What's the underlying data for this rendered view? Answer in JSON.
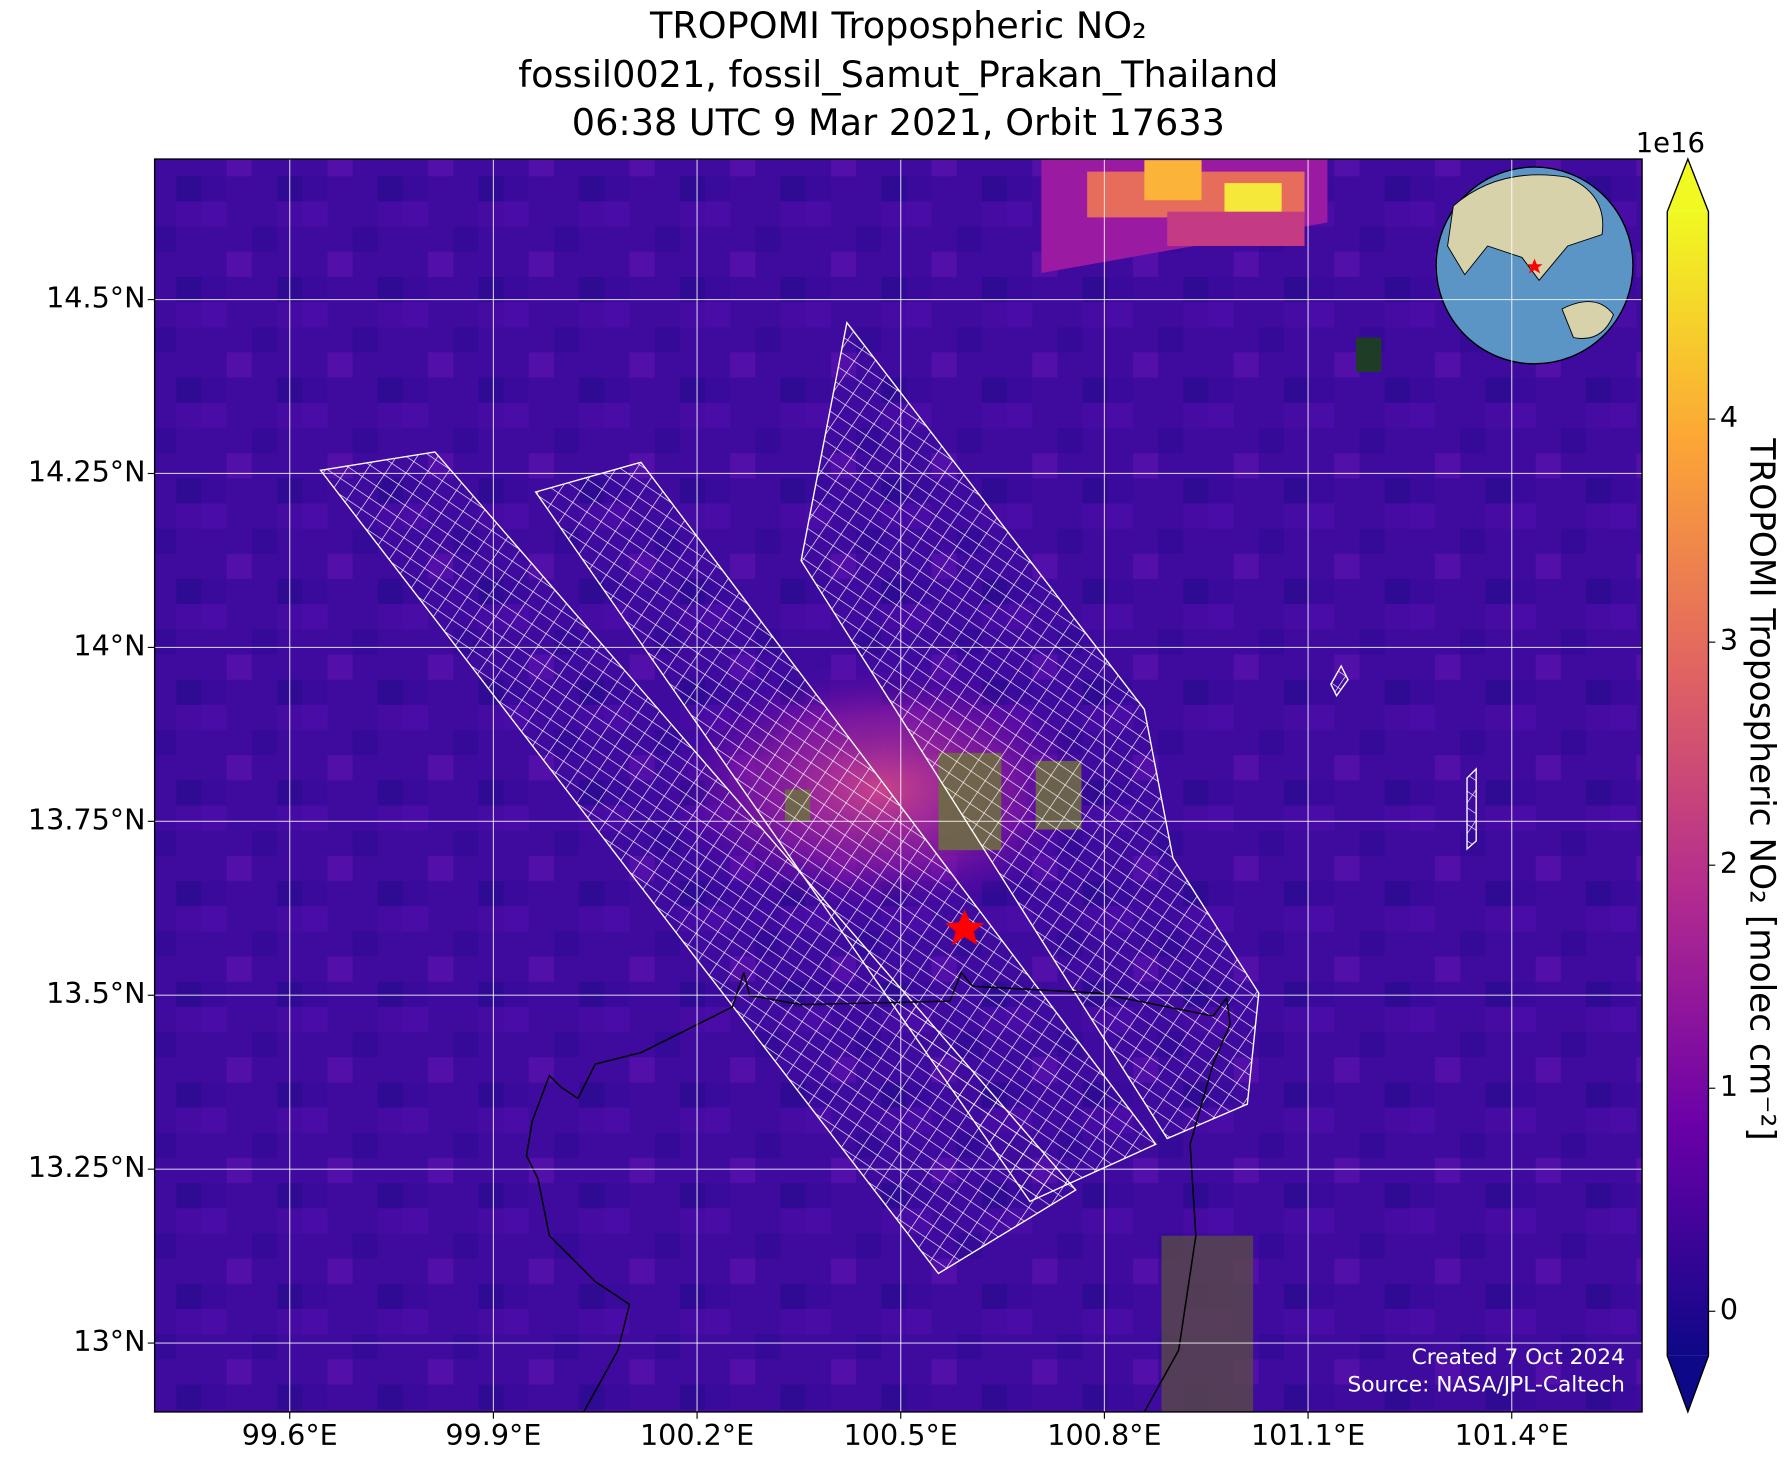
{
  "chart_data": {
    "type": "map",
    "title": [
      "TROPOMI Tropospheric NO₂",
      "fossil0021, fossil_Samut_Prakan_Thailand",
      "06:38 UTC 9 Mar 2021, Orbit 17633"
    ],
    "xlim": [
      99.401,
      101.592
    ],
    "xticks": [
      {
        "value": 99.6,
        "label": "99.6°E"
      },
      {
        "value": 99.9,
        "label": "99.9°E"
      },
      {
        "value": 100.2,
        "label": "100.2°E"
      },
      {
        "value": 100.5,
        "label": "100.5°E"
      },
      {
        "value": 100.8,
        "label": "100.8°E"
      },
      {
        "value": 101.1,
        "label": "101.1°E"
      },
      {
        "value": 101.4,
        "label": "101.4°E"
      }
    ],
    "ylim": [
      12.901,
      14.702
    ],
    "yticks": [
      {
        "value": 13,
        "label": "13°N"
      },
      {
        "value": 13.25,
        "label": "13.25°N"
      },
      {
        "value": 13.5,
        "label": "13.5°N"
      },
      {
        "value": 13.75,
        "label": "13.75°N"
      },
      {
        "value": 14,
        "label": "14°N"
      },
      {
        "value": 14.25,
        "label": "14.25°N"
      },
      {
        "value": 14.5,
        "label": "14.5°N"
      }
    ],
    "grid": true,
    "colorbar": {
      "label": "TROPOMI Tropospheric NO₂ [molec cm⁻²]",
      "offset_label": "1e16",
      "lim": [
        -0.2,
        4.93
      ],
      "ticks": [
        0,
        1,
        2,
        3,
        4
      ],
      "colormap": [
        "#0d0887",
        "#6a00a8",
        "#b12a90",
        "#e16462",
        "#fca636",
        "#f0f921"
      ]
    },
    "annotations": [
      "Created 7 Oct 2024",
      "Source: NASA/JPL-Caltech"
    ]
  }
}
